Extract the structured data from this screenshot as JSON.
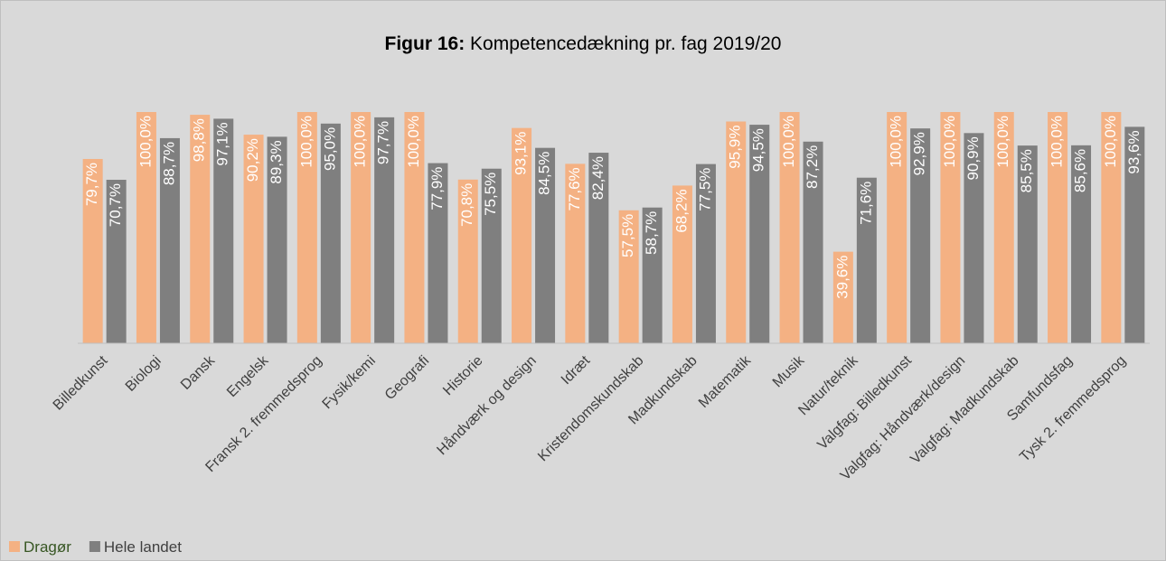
{
  "chart_data": {
    "type": "bar",
    "title_label": "Figur 16:",
    "title": "Kompetencedækning pr. fag 2019/20",
    "categories": [
      "Billedkunst",
      "Biologi",
      "Dansk",
      "Engelsk",
      "Fransk 2. fremmedsprog",
      "Fysik/kemi",
      "Geografi",
      "Historie",
      "Håndværk og design",
      "Idræt",
      "Kristendomskundskab",
      "Madkundskab",
      "Matematik",
      "Musik",
      "Natur/teknik",
      "Valgfag: Billedkunst",
      "Valgfag: Håndværk/design",
      "Valgfag: Madkundskab",
      "Samfundsfag",
      "Tysk 2. fremmedsprog"
    ],
    "series": [
      {
        "name": "Dragør",
        "color": "#f4b183",
        "values": [
          79.7,
          100,
          98.8,
          90.2,
          100,
          100,
          100,
          70.8,
          93.1,
          77.6,
          57.5,
          68.2,
          95.9,
          100,
          39.6,
          100,
          100,
          100,
          100,
          100
        ],
        "value_labels": [
          "79,7%",
          "100,0%",
          "98,8%",
          "90,2%",
          "100,0%",
          "100,0%",
          "100,0%",
          "70,8%",
          "93,1%",
          "77,6%",
          "57,5%",
          "68,2%",
          "95,9%",
          "100,0%",
          "39,6%",
          "100,0%",
          "100,0%",
          "100,0%",
          "100,0%",
          "100,0%"
        ]
      },
      {
        "name": "Hele landet",
        "color": "#7f7f7f",
        "values": [
          70.7,
          88.7,
          97.1,
          89.3,
          95.0,
          97.7,
          77.9,
          75.5,
          84.5,
          82.4,
          58.7,
          77.5,
          94.5,
          87.2,
          71.6,
          92.9,
          90.9,
          85.5,
          85.6,
          93.6
        ],
        "value_labels": [
          "70,7%",
          "88,7%",
          "97,1%",
          "89,3%",
          "95,0%",
          "97,7%",
          "77,9%",
          "75,5%",
          "84,5%",
          "82,4%",
          "58,7%",
          "77,5%",
          "94,5%",
          "87,2%",
          "71,6%",
          "92,9%",
          "90,9%",
          "85,5%",
          "85,6%",
          "93,6%"
        ]
      }
    ],
    "ylim": [
      0,
      100
    ],
    "legend": "bottom-left"
  }
}
